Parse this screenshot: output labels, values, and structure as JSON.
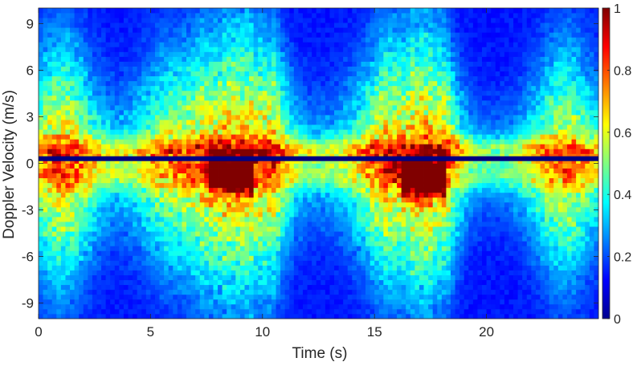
{
  "chart_data": {
    "type": "heatmap",
    "title": "",
    "xlabel": "Time (s)",
    "ylabel": "Doppler Velocity (m/s)",
    "xlim": [
      0,
      25
    ],
    "ylim": [
      -10,
      10
    ],
    "x_ticks": [
      0,
      5,
      10,
      15,
      20
    ],
    "x_tick_labels": [
      "0",
      "5",
      "10",
      "15",
      "20"
    ],
    "y_ticks": [
      -9,
      -6,
      -3,
      0,
      3,
      6,
      9
    ],
    "y_tick_labels": [
      "-9",
      "-6",
      "-3",
      "0",
      "3",
      "6",
      "9"
    ],
    "colormap": "jet",
    "colorbar": {
      "range": [
        0,
        1
      ],
      "ticks": [
        0,
        0.2,
        0.4,
        0.6,
        0.8,
        1
      ],
      "tick_labels": [
        "0",
        "0.2",
        "0.4",
        "0.6",
        "0.8",
        "1"
      ]
    },
    "grid": false,
    "zero_velocity_line": {
      "y": 0.3,
      "intensity": 0.0
    },
    "intensity_features": [
      {
        "label": "peak",
        "t_start": 8.0,
        "t_end": 9.2,
        "v_center": -0.8,
        "intensity": 1.0
      },
      {
        "label": "peak",
        "t_start": 16.5,
        "t_end": 17.8,
        "v_center": -1.0,
        "intensity": 1.0
      },
      {
        "label": "band",
        "t_start": 0,
        "t_end": 25,
        "v_center": 0.8,
        "intensity": 0.55
      },
      {
        "label": "band",
        "t_start": 0,
        "t_end": 25,
        "v_center": -0.8,
        "intensity": 0.45
      }
    ]
  }
}
